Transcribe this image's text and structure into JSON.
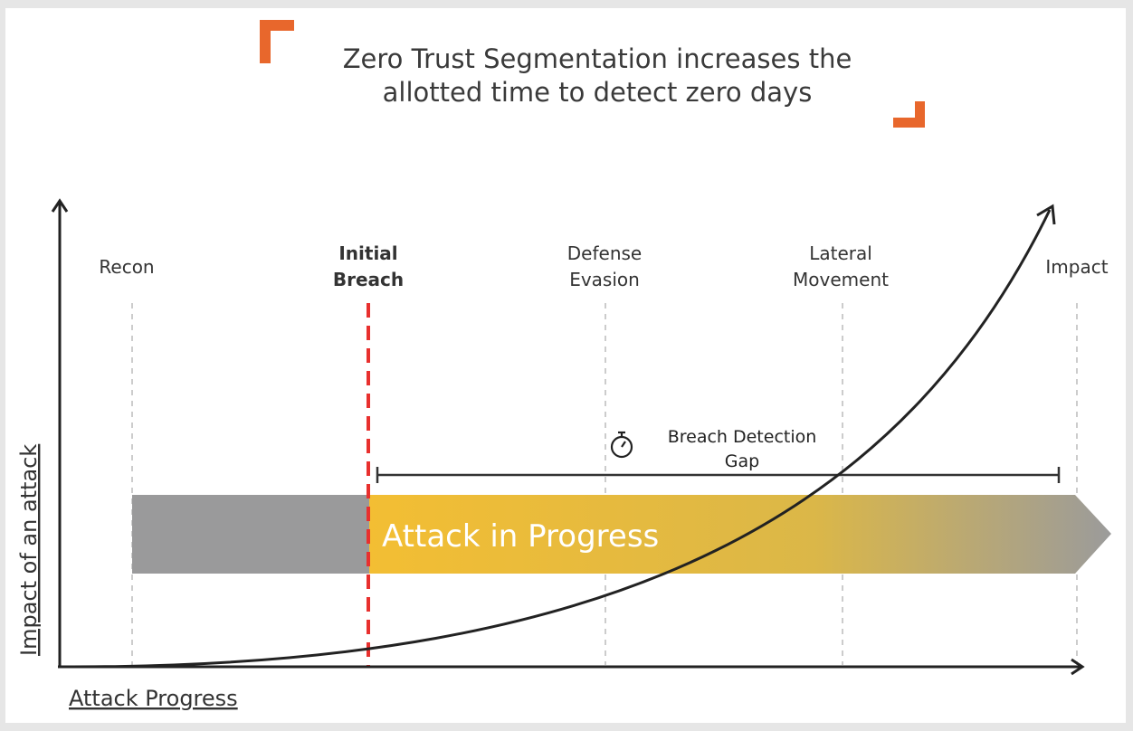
{
  "title": {
    "line1": "Zero Trust Segmentation increases the",
    "line2": "allotted time to detect zero days"
  },
  "stages": [
    {
      "line1": "Recon",
      "line2": ""
    },
    {
      "line1": "Initial",
      "line2": "Breach"
    },
    {
      "line1": "Defense",
      "line2": "Evasion"
    },
    {
      "line1": "Lateral",
      "line2": "Movement"
    },
    {
      "line1": "Impact",
      "line2": ""
    }
  ],
  "gap": {
    "line1": "Breach Detection",
    "line2": "Gap",
    "icon": "stopwatch-icon"
  },
  "bar_label": "Attack in Progress",
  "axes": {
    "x_label": "Attack Progress",
    "y_label": "Impact of an attack"
  },
  "colors": {
    "accent": "#e8672c",
    "breach_line": "#e8302e",
    "bar_gray": "#9a9a9b",
    "bar_yellow": "#f0bd35",
    "curve": "#222222"
  }
}
